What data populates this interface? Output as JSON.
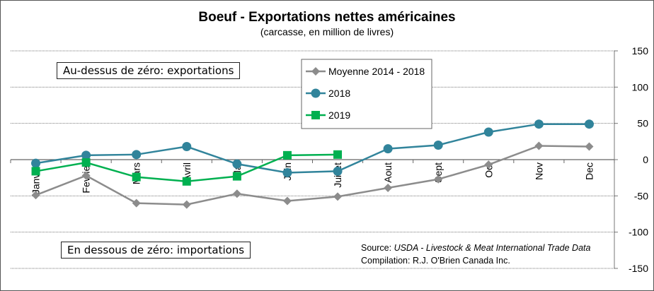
{
  "chart_data": {
    "type": "line",
    "title": "Boeuf  - Exportations nettes américaines",
    "subtitle": "(carcasse, en million de livres)",
    "categories": [
      "Janvier",
      "Fevrier",
      "Mars",
      "Avril",
      "Mai",
      "Juin",
      "Juillet",
      "Aout",
      "Sept",
      "Oct",
      "Nov",
      "Dec"
    ],
    "ylim": [
      -150,
      150
    ],
    "yticks": [
      "150",
      "100",
      "50",
      "0",
      "-50",
      "-100",
      "-150"
    ],
    "ytick_values": [
      150,
      100,
      50,
      0,
      -50,
      -100,
      -150
    ],
    "y_axis_side": "right",
    "grid": "horizontal dotted",
    "legend_position": "top-center",
    "series": [
      {
        "name": "Moyenne 2014 - 2018",
        "color": "#8c8c8c",
        "marker": "diamond",
        "values": [
          -49,
          -22,
          -60,
          -62,
          -47,
          -57,
          -51,
          -39,
          -27,
          -7,
          19,
          18
        ]
      },
      {
        "name": "2018",
        "color": "#31849b",
        "marker": "circle",
        "values": [
          -5,
          6,
          7,
          18,
          -6,
          -18,
          -16,
          15,
          20,
          38,
          49,
          49
        ]
      },
      {
        "name": "2019",
        "color": "#00b050",
        "marker": "square",
        "values": [
          -16,
          -4,
          -24,
          -30,
          -23,
          6,
          7,
          null,
          null,
          null,
          null,
          null
        ]
      }
    ],
    "annotations": {
      "above": "Au-dessus de zéro: exportations",
      "below": "En dessous de zéro: importations"
    },
    "source_label": "Source: ",
    "source_text": "USDA - Livestock & Meat International Trade Data",
    "compilation": "Compilation: R.J. O'Brien Canada Inc."
  }
}
